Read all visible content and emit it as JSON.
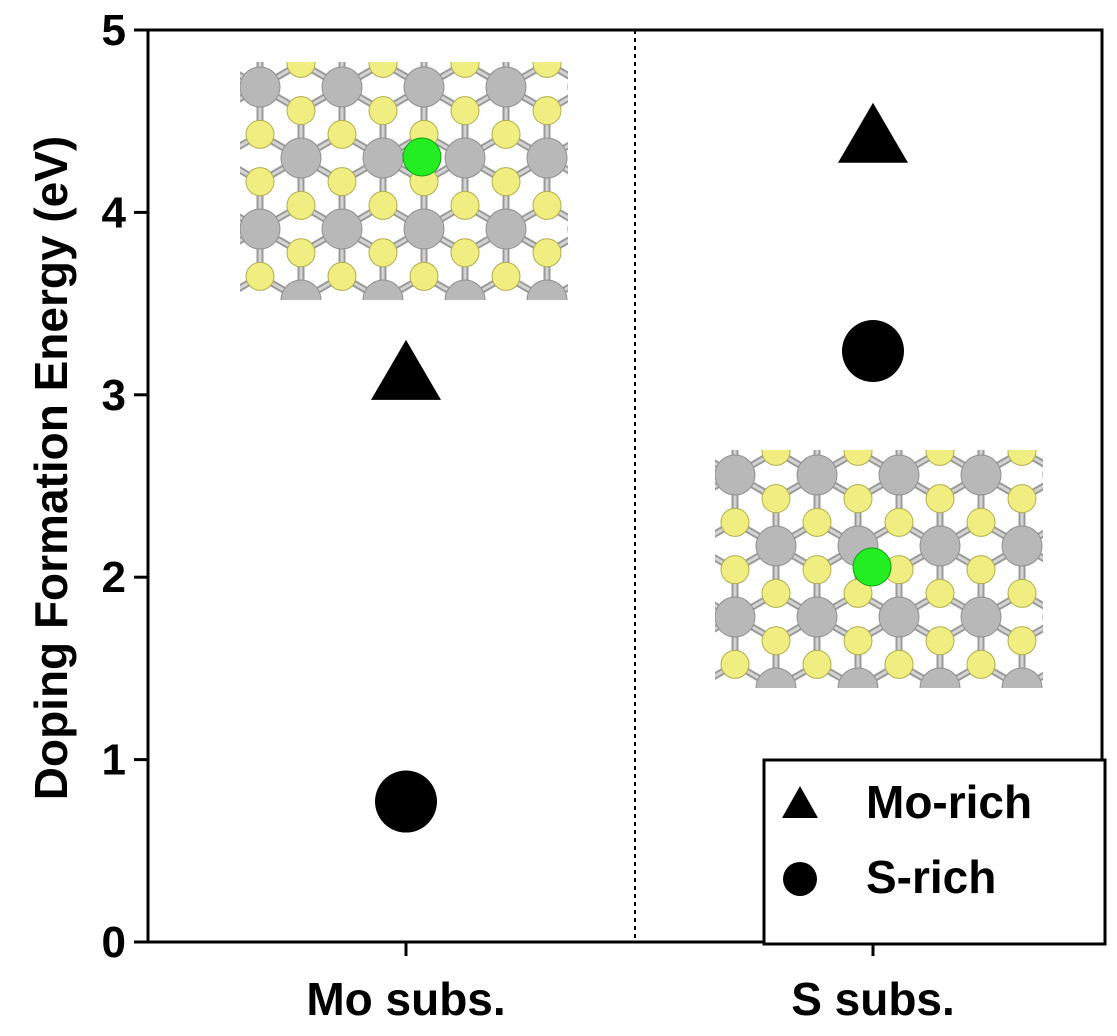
{
  "chart_data": {
    "type": "scatter",
    "ylabel": "Doping Formation Energy (eV)",
    "xlabel": "",
    "categories": [
      "Mo subs.",
      "S subs."
    ],
    "ylim": [
      0,
      5
    ],
    "yticks": [
      "0",
      "1",
      "2",
      "3",
      "4",
      "5"
    ],
    "grid": false,
    "legend_position": "bottom-right",
    "series": [
      {
        "name": "Mo-rich",
        "marker": "triangle",
        "color": "#000000",
        "values": [
          3.12,
          4.42
        ]
      },
      {
        "name": "S-rich",
        "marker": "circle",
        "color": "#000000",
        "values": [
          0.77,
          3.24
        ]
      }
    ],
    "divider": "dotted line between categories",
    "insets": [
      {
        "depicts": "MoS2 lattice with Mo-site substitution",
        "colors": {
          "metal": "#b8b8b8",
          "sulfur": "#f0ee80",
          "dopant": "#22ee22"
        }
      },
      {
        "depicts": "MoS2 lattice with S-site substitution",
        "colors": {
          "metal": "#b8b8b8",
          "sulfur": "#f0ee80",
          "dopant": "#22ee22"
        }
      }
    ]
  }
}
